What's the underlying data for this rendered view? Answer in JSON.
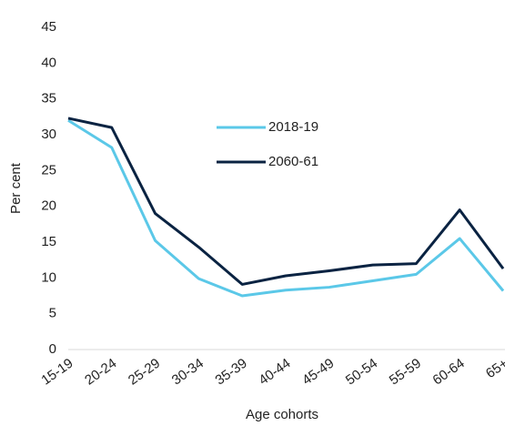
{
  "chart_data": {
    "type": "line",
    "x_label": "Age cohorts",
    "y_label": "Per cent",
    "categories": [
      "15-19",
      "20-24",
      "25-29",
      "30-34",
      "35-39",
      "40-44",
      "45-49",
      "50-54",
      "55-59",
      "60-64",
      "65+"
    ],
    "series": [
      {
        "name": "2018-19",
        "color": "#5bc8e8",
        "values": [
          32,
          28.2,
          15.2,
          9.9,
          7.5,
          8.3,
          8.7,
          9.6,
          10.5,
          15.5,
          8.2
        ]
      },
      {
        "name": "2060-61",
        "color": "#0a2342",
        "values": [
          32.3,
          31,
          19,
          14.3,
          9.1,
          10.3,
          11,
          11.8,
          12,
          19.5,
          11.3
        ]
      }
    ],
    "ylim": [
      0,
      45
    ],
    "yticks": [
      0,
      5,
      10,
      15,
      20,
      25,
      30,
      35,
      40,
      45
    ],
    "grid": false
  }
}
